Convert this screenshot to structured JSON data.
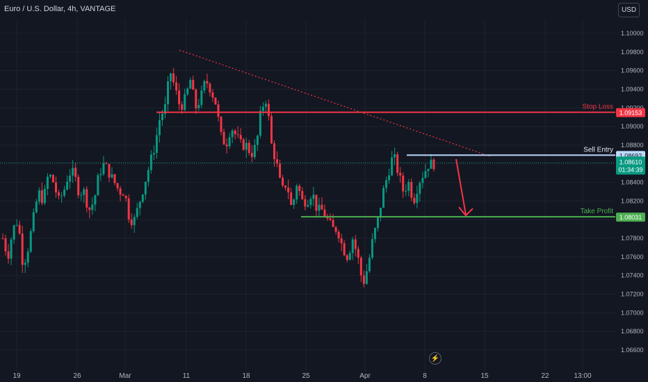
{
  "header": {
    "symbol_title": "Euro / U.S. Dollar, 4h, VANTAGE"
  },
  "currency_button": "USD",
  "logo_icon": "lightning-icon",
  "colors": {
    "background": "#131722",
    "up": "#089981",
    "down": "#f23645",
    "stop_loss": "#f23645",
    "sell_entry": "#bbd9fb",
    "take_profit": "#4caf50",
    "current_price": "#089981",
    "trendline": "#f23645"
  },
  "chart_data": {
    "type": "candlestick",
    "instrument": "Euro / U.S. Dollar, 4h, VANTAGE",
    "ylim": [
      1.065,
      1.1015
    ],
    "y_ticks": [
      "1.10000",
      "1.09800",
      "1.09600",
      "1.09400",
      "1.09200",
      "1.09000",
      "1.08800",
      "1.08600",
      "1.08400",
      "1.08200",
      "1.08000",
      "1.07800",
      "1.07600",
      "1.07400",
      "1.07200",
      "1.07000",
      "1.06800",
      "1.06600"
    ],
    "x_ticks": [
      "19",
      "26",
      "Mar",
      "11",
      "18",
      "25",
      "Apr",
      "8",
      "15",
      "22",
      "13:00"
    ],
    "price_path": [
      [
        1.078,
        1.076
      ],
      [
        1.079,
        1.08
      ],
      [
        1.075,
        1.077
      ],
      [
        1.08,
        1.083
      ],
      [
        1.082,
        1.085
      ],
      [
        1.084,
        1.082
      ],
      [
        1.083,
        1.085
      ],
      [
        1.085,
        1.083
      ],
      [
        1.083,
        1.081
      ],
      [
        1.082,
        1.085
      ],
      [
        1.086,
        1.085
      ],
      [
        1.084,
        1.083
      ],
      [
        1.083,
        1.08
      ],
      [
        1.08,
        1.082
      ],
      [
        1.084,
        1.086
      ],
      [
        1.088,
        1.091
      ],
      [
        1.092,
        1.096
      ],
      [
        1.094,
        1.092
      ],
      [
        1.093,
        1.095
      ],
      [
        1.092,
        1.093
      ],
      [
        1.095,
        1.094
      ],
      [
        1.0925,
        1.089
      ],
      [
        1.088,
        1.09
      ],
      [
        1.089,
        1.088
      ],
      [
        1.088,
        1.087
      ],
      [
        1.088,
        1.092
      ],
      [
        1.093,
        1.088
      ],
      [
        1.086,
        1.083
      ],
      [
        1.084,
        1.081
      ],
      [
        1.084,
        1.082
      ],
      [
        1.082,
        1.083
      ],
      [
        1.081,
        1.081
      ],
      [
        1.08,
        1.079
      ],
      [
        1.079,
        1.077
      ],
      [
        1.076,
        1.078
      ],
      [
        1.076,
        1.073
      ],
      [
        1.075,
        1.078
      ],
      [
        1.08,
        1.083
      ],
      [
        1.085,
        1.087
      ],
      [
        1.085,
        1.083
      ],
      [
        1.084,
        1.082
      ],
      [
        1.084,
        1.085
      ],
      [
        1.086,
        1.086
      ]
    ],
    "horizontal_levels": [
      {
        "name": "Stop Loss",
        "price": 1.09153,
        "label": "1.09153"
      },
      {
        "name": "Sell Entry",
        "price": 1.08692,
        "label": "1.08692"
      },
      {
        "name": "Take Profit",
        "price": 1.08031,
        "label": "1.08031"
      }
    ],
    "current_price": {
      "price": 1.0861,
      "label": "1.08610",
      "countdown": "01:34:39"
    },
    "trendline": {
      "from_price": 1.0982,
      "to_price": 1.0868
    },
    "projection": {
      "from": 1.0868,
      "to": 1.0803
    }
  },
  "labels": {
    "stop_loss": "Stop Loss",
    "sell_entry": "Sell Entry",
    "take_profit": "Take Profit"
  }
}
